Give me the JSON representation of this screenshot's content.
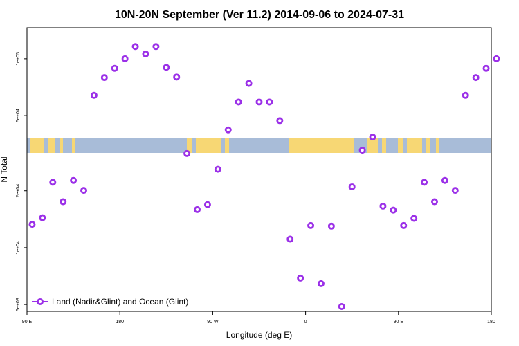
{
  "chart_data": {
    "type": "scatter",
    "title": "10N-20N September (Ver 11.2)   2014-09-06 to 2024-07-31",
    "xlabel": "Longitude (deg E)",
    "ylabel": "N Total",
    "y_scale": "log",
    "ylim": [
      4600,
      146000
    ],
    "x_ticks": [
      "90 E",
      "180",
      "90 W",
      "0",
      "90 E",
      "180"
    ],
    "y_ticks": [
      "5e+03",
      "1e+04",
      "2e+04",
      "5e+04",
      "1e+05"
    ],
    "y_tick_values": [
      5000,
      10000,
      20000,
      50000,
      100000
    ],
    "marker_color": "#9b30e8",
    "land_color": "#f7d774",
    "ocean_color": "#a8bcd8",
    "legend": {
      "position": "bottom-left",
      "label": "Land (Nadir&Glint) and Ocean (Glint)"
    },
    "series": [
      {
        "name": "Land (Nadir&Glint) and Ocean (Glint)",
        "x": [
          95,
          105,
          115,
          125,
          135,
          145,
          155,
          165,
          175,
          185,
          195,
          205,
          215,
          225,
          235,
          245,
          255,
          265,
          275,
          285,
          295,
          305,
          315,
          325,
          335,
          345,
          355,
          365,
          375,
          385,
          395,
          405,
          415,
          425,
          435,
          445,
          455,
          465,
          475,
          485,
          495,
          505,
          515,
          525,
          535,
          545
        ],
        "values": [
          13300,
          14400,
          22200,
          17500,
          22700,
          20100,
          64000,
          79500,
          89000,
          100000,
          116000,
          106000,
          116000,
          90000,
          80000,
          31500,
          15900,
          16900,
          26000,
          42000,
          59000,
          74000,
          59000,
          59000,
          47000,
          11100,
          6900,
          13100,
          6450,
          13000,
          4880,
          21000,
          32800,
          38500,
          16600,
          15800,
          13100,
          14300,
          22200,
          17500,
          22700,
          20100,
          64000,
          79500,
          89000,
          100000
        ]
      }
    ]
  }
}
